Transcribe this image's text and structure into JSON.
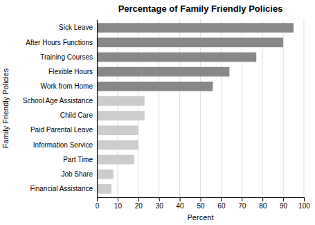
{
  "chart_data": {
    "type": "bar",
    "orientation": "horizontal",
    "title": "Percentage of Family Friendly Policies",
    "xlabel": "Percent",
    "ylabel": "Family Friendly Policies",
    "categories": [
      "Sick Leave",
      "After Hours Functions",
      "Training Courses",
      "Flexible Hours",
      "Work from Home",
      "School Age Assistance",
      "Child Care",
      "Paid Parental Leave",
      "Information Service",
      "Part Time",
      "Job Share",
      "Financial Assistance"
    ],
    "values": [
      95,
      90,
      77,
      64,
      56,
      23,
      23,
      20,
      20,
      18,
      8,
      7
    ],
    "colors": [
      "#888888",
      "#888888",
      "#888888",
      "#888888",
      "#888888",
      "#cccccc",
      "#cccccc",
      "#cccccc",
      "#cccccc",
      "#cccccc",
      "#cccccc",
      "#cccccc"
    ],
    "xlim": [
      0,
      100
    ],
    "xticks": [
      0,
      10,
      20,
      30,
      40,
      50,
      60,
      70,
      80,
      90,
      100
    ],
    "grid": true
  }
}
